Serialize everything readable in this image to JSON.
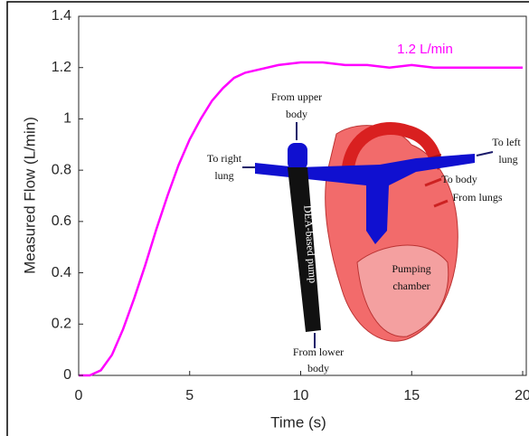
{
  "chart_data": {
    "type": "line",
    "x_label": "Time (s)",
    "y_label": "Measured Flow (L/min)",
    "annotation": "1.2 L/min",
    "color": "#ff00ff",
    "x": [
      0,
      0.5,
      1,
      1.5,
      2,
      2.5,
      3,
      3.5,
      4,
      4.5,
      5,
      5.5,
      6,
      6.5,
      7,
      7.5,
      8,
      9,
      10,
      11,
      12,
      13,
      14,
      15,
      16,
      17,
      18,
      19,
      20
    ],
    "values": [
      0,
      0,
      0.02,
      0.08,
      0.18,
      0.3,
      0.43,
      0.57,
      0.7,
      0.82,
      0.92,
      1.0,
      1.07,
      1.12,
      1.16,
      1.18,
      1.19,
      1.21,
      1.22,
      1.22,
      1.21,
      1.21,
      1.2,
      1.21,
      1.2,
      1.2,
      1.2,
      1.2,
      1.2
    ],
    "xlim": [
      0,
      20
    ],
    "xticks": [
      0,
      5,
      10,
      15,
      20
    ],
    "ylim": [
      0,
      1.4
    ],
    "yticks": [
      0,
      0.2,
      0.4,
      0.6,
      0.8,
      1,
      1.2,
      1.4
    ],
    "grid": false,
    "inset_labels": {
      "from_upper_body": [
        "From upper",
        "body"
      ],
      "to_right_lung": [
        "To right",
        "lung"
      ],
      "pump": [
        "DEA-based pump"
      ],
      "to_left_lung": [
        "To left",
        "lung"
      ],
      "to_body": [
        "To body"
      ],
      "from_lungs": [
        "From lungs"
      ],
      "pumping_chamber": [
        "Pumping",
        "chamber"
      ],
      "from_lower_body": [
        "From lower",
        "body"
      ]
    }
  }
}
